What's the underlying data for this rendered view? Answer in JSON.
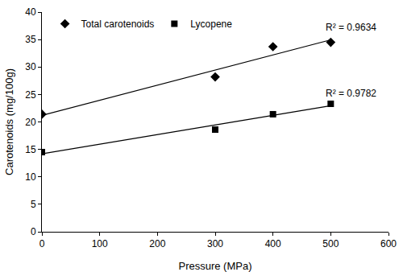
{
  "chart_data": {
    "type": "scatter",
    "x_label": "Pressure (MPa)",
    "y_label": "Carotenoids (mg/100g)",
    "x": [
      0,
      300,
      400,
      500
    ],
    "series": [
      {
        "name": "Total carotenoids",
        "color": "#000000",
        "marker": "diamond",
        "line_style": "trend",
        "values": [
          21.4,
          28.2,
          33.7,
          34.5
        ],
        "annotation": "R² = 0.9634"
      },
      {
        "name": "Lycopene",
        "color": "#000000",
        "marker": "square",
        "line_style": "trend",
        "values": [
          14.5,
          18.6,
          21.4,
          23.3
        ],
        "annotation": "R² = 0.9782"
      }
    ],
    "xlim": [
      0,
      600
    ],
    "xticks": [
      0,
      100,
      200,
      300,
      400,
      500,
      600
    ],
    "ylim": [
      0,
      40
    ],
    "yticks": [
      0,
      5,
      10,
      15,
      20,
      25,
      30,
      35,
      40
    ],
    "grid": false,
    "legend": "upper left"
  }
}
